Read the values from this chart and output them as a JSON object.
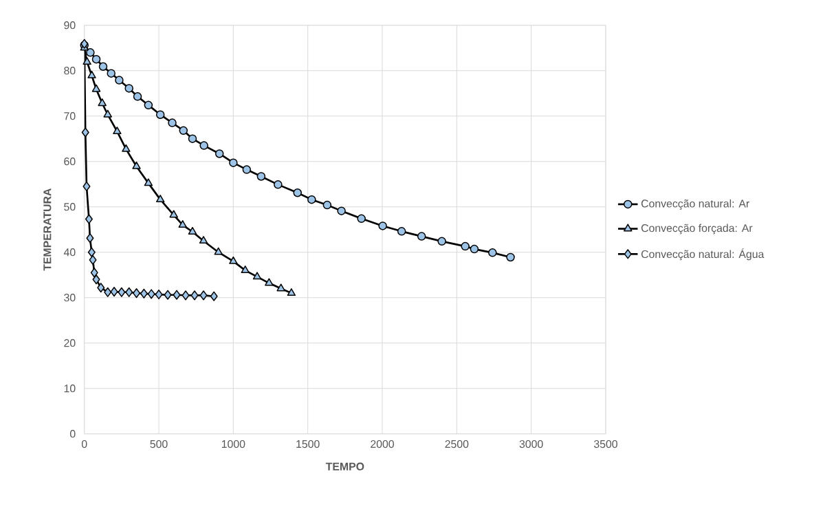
{
  "chart_data": {
    "type": "line",
    "xlabel": "TEMPO",
    "ylabel": "TEMPERATURA",
    "xlim": [
      0,
      3500
    ],
    "ylim": [
      0,
      90
    ],
    "xticks": [
      0,
      500,
      1000,
      1500,
      2000,
      2500,
      3000,
      3500
    ],
    "yticks": [
      0,
      10,
      20,
      30,
      40,
      50,
      60,
      70,
      80,
      90
    ],
    "grid": true,
    "legend": "right",
    "line_style": "solid",
    "series": [
      {
        "name": "Convecção natural: Ar",
        "color": "#9dc3e6",
        "marker": "circle",
        "x": [
          0,
          40,
          80,
          126,
          180,
          234,
          300,
          357,
          430,
          510,
          590,
          665,
          726,
          803,
          907,
          1000,
          1090,
          1187,
          1300,
          1431,
          1526,
          1630,
          1726,
          1860,
          2003,
          2130,
          2264,
          2400,
          2557,
          2618,
          2740,
          2861
        ],
        "values": [
          85.6,
          84.0,
          82.5,
          80.9,
          79.4,
          77.9,
          76.1,
          74.3,
          72.4,
          70.3,
          68.5,
          66.8,
          65.0,
          63.5,
          61.7,
          59.7,
          58.2,
          56.7,
          54.9,
          53.1,
          51.6,
          50.4,
          49.1,
          47.4,
          45.8,
          44.6,
          43.5,
          42.4,
          41.3,
          40.7,
          39.9,
          38.9
        ]
      },
      {
        "name": "Convecção forçada: Ar",
        "color": "#9dc3e6",
        "marker": "triangle",
        "x": [
          0,
          18,
          50,
          80,
          120,
          157,
          220,
          280,
          350,
          430,
          510,
          600,
          660,
          726,
          800,
          900,
          1000,
          1080,
          1160,
          1240,
          1320,
          1390
        ],
        "values": [
          85.0,
          81.9,
          78.9,
          75.9,
          72.8,
          70.3,
          66.6,
          62.7,
          58.9,
          55.2,
          51.6,
          48.2,
          46.0,
          44.5,
          42.5,
          40.0,
          38.0,
          36.0,
          34.6,
          33.2,
          32.0,
          31.0
        ]
      },
      {
        "name": "Convecção natural: Água",
        "color": "#9dc3e6",
        "marker": "diamond",
        "x": [
          0,
          7,
          15,
          31,
          38,
          49,
          57,
          67,
          80,
          111,
          157,
          200,
          250,
          300,
          350,
          400,
          450,
          500,
          560,
          620,
          680,
          740,
          800,
          870
        ],
        "values": [
          85.9,
          66.4,
          54.5,
          47.3,
          43.1,
          40.0,
          38.3,
          35.5,
          34.0,
          32.2,
          31.2,
          31.3,
          31.2,
          31.2,
          31.0,
          30.9,
          30.8,
          30.7,
          30.6,
          30.6,
          30.5,
          30.5,
          30.5,
          30.3
        ]
      }
    ]
  }
}
